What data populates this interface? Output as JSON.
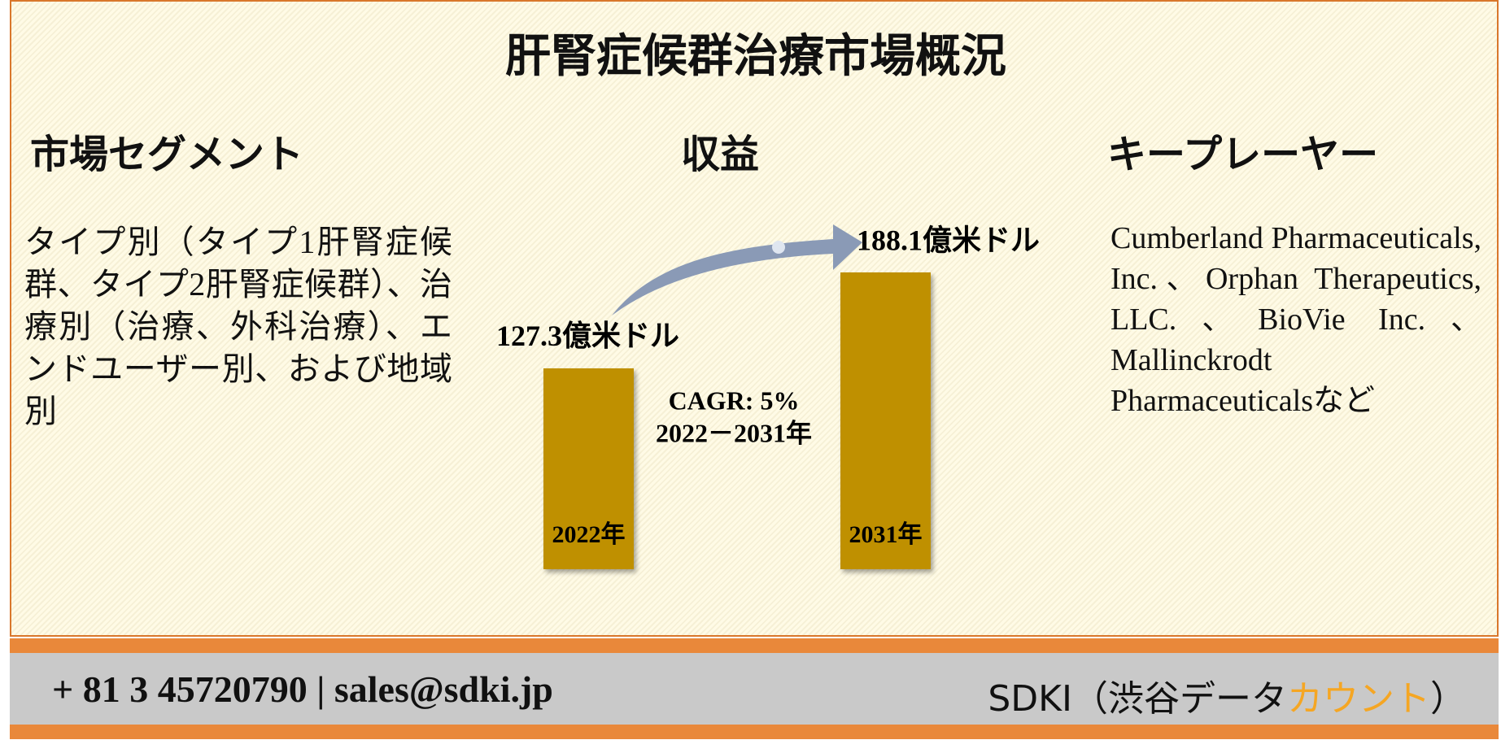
{
  "title": "肝腎症候群治療市場概況",
  "segments": {
    "heading": "市場セグメント",
    "text": "タイプ別（タイプ1肝腎症候群、タイプ2肝腎症候群）、治療別（治療、外科治療）、エンドユーザー別、および地域別"
  },
  "revenue": {
    "heading": "収益",
    "bars": [
      {
        "year": "2022年",
        "value": 127.3,
        "value_label": "127.3億米ドル"
      },
      {
        "year": "2031年",
        "value": 188.1,
        "value_label": "188.1億米ドル"
      }
    ],
    "cagr": "CAGR: 5%",
    "period": "2022－2031年"
  },
  "players": {
    "heading": "キープレーヤー",
    "text": "Cumberland Pharmaceuticals, Inc.、Orphan Therapeutics, LLC.、BioVie Inc.、Mallinckrodt Pharmaceuticalsなど"
  },
  "footer": {
    "contact": "+ 81 3 45720790 | sales@sdki.jp",
    "brand": "SDKI（渋谷データ",
    "brand_highlight": "カウント",
    "brand_end": "）"
  }
}
